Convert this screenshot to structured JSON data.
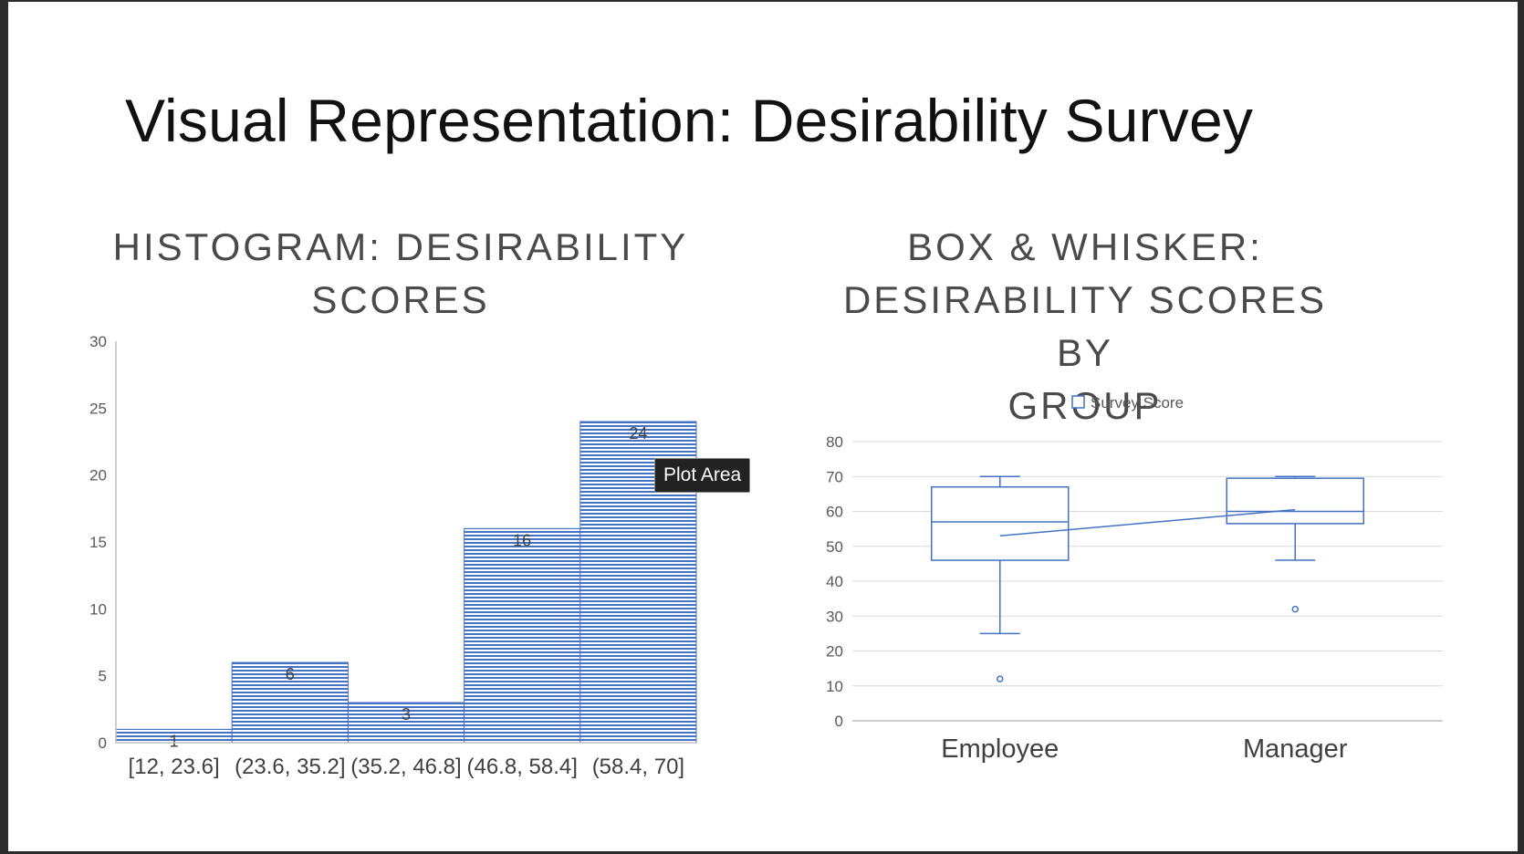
{
  "slide": {
    "title": "Visual Representation: Desirability Survey",
    "tooltip": "Plot Area"
  },
  "colors": {
    "accent": "#4472c4",
    "grid": "#d9d9d9",
    "axis": "#bfbfbf"
  },
  "chart_data": [
    {
      "type": "bar",
      "title_lines": [
        "HISTOGRAM: DESIRABILITY",
        "SCORES"
      ],
      "categories": [
        "[12, 23.6]",
        "(23.6, 35.2]",
        "(35.2, 46.8]",
        "(46.8, 58.4]",
        "(58.4, 70]"
      ],
      "values": [
        1,
        6,
        3,
        16,
        24
      ],
      "ylim": [
        0,
        30
      ],
      "yticks": [
        0,
        5,
        10,
        15,
        20,
        25,
        30
      ],
      "xlabel": "",
      "ylabel": "",
      "grid": false
    },
    {
      "type": "boxplot",
      "title_lines": [
        "BOX & WHISKER:",
        "DESIRABILITY SCORES BY",
        "GROUP"
      ],
      "legend": "Survey Score",
      "categories": [
        "Employee",
        "Manager"
      ],
      "groups": [
        {
          "name": "Employee",
          "min": 25,
          "q1": 46,
          "median": 57,
          "q3": 67,
          "max": 70,
          "mean": 53,
          "outliers": [
            12
          ]
        },
        {
          "name": "Manager",
          "min": 46,
          "q1": 56.5,
          "median": 60,
          "q3": 69.5,
          "max": 70,
          "mean": 60.5,
          "outliers": [
            32
          ]
        }
      ],
      "ylim": [
        0,
        80
      ],
      "yticks": [
        0,
        10,
        20,
        30,
        40,
        50,
        60,
        70,
        80
      ],
      "grid": true
    }
  ]
}
